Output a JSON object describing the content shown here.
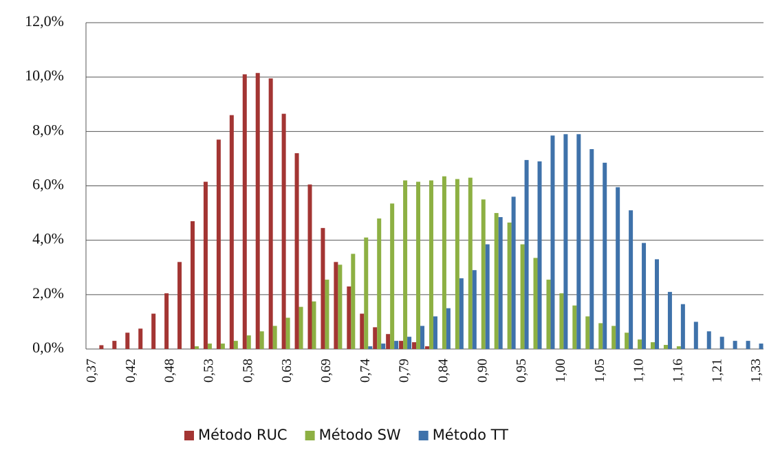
{
  "chart_data": {
    "type": "bar",
    "categories": [
      "0,37",
      null,
      null,
      "0,42",
      null,
      null,
      "0,48",
      null,
      null,
      "0,53",
      null,
      null,
      "0,58",
      null,
      null,
      "0,63",
      null,
      null,
      "0,69",
      null,
      null,
      "0,74",
      null,
      null,
      "0,79",
      null,
      null,
      "0,84",
      null,
      null,
      "0,90",
      null,
      null,
      "0,95",
      null,
      null,
      "1,00",
      null,
      null,
      "1,05",
      null,
      null,
      "1,10",
      null,
      null,
      "1,16",
      null,
      null,
      "1,21",
      null,
      null,
      "1,33"
    ],
    "series": [
      {
        "name": "Método RUC",
        "color": "#a33533",
        "values": [
          0,
          0.14,
          0.3,
          0.6,
          0.75,
          1.3,
          2.05,
          3.2,
          4.7,
          6.15,
          7.7,
          8.6,
          10.1,
          10.15,
          9.95,
          8.65,
          7.2,
          6.05,
          4.45,
          3.2,
          2.3,
          1.3,
          0.8,
          0.55,
          0.3,
          0.25,
          0.1,
          0,
          0,
          0,
          0,
          0,
          0,
          0,
          0,
          0,
          0,
          0,
          0,
          0,
          0,
          0,
          0,
          0,
          0,
          0,
          0,
          0,
          0,
          0,
          0,
          0
        ]
      },
      {
        "name": "Método SW",
        "color": "#8db043",
        "values": [
          0,
          0,
          0,
          0,
          0,
          0,
          0,
          0,
          0.1,
          0.2,
          0.2,
          0.3,
          0.5,
          0.65,
          0.85,
          1.15,
          1.55,
          1.75,
          2.55,
          3.1,
          3.5,
          4.1,
          4.8,
          5.35,
          6.2,
          6.15,
          6.2,
          6.35,
          6.25,
          6.3,
          5.5,
          5.0,
          4.65,
          3.85,
          3.35,
          2.55,
          2.05,
          1.6,
          1.2,
          0.95,
          0.85,
          0.6,
          0.35,
          0.25,
          0.15,
          0.1,
          0,
          0,
          0,
          0,
          0,
          0
        ]
      },
      {
        "name": "Método TT",
        "color": "#3f72aa",
        "values": [
          0,
          0,
          0,
          0,
          0,
          0,
          0,
          0,
          0,
          0,
          0,
          0,
          0,
          0,
          0,
          0,
          0,
          0,
          0,
          0,
          0,
          0.1,
          0.2,
          0.3,
          0.45,
          0.85,
          1.2,
          1.5,
          2.6,
          2.9,
          3.85,
          4.85,
          5.6,
          6.95,
          6.9,
          7.85,
          7.9,
          7.9,
          7.35,
          6.85,
          5.95,
          5.1,
          3.9,
          3.3,
          2.1,
          1.65,
          1.0,
          0.65,
          0.45,
          0.3,
          0.3,
          0.2
        ]
      }
    ],
    "ylim": [
      0,
      12
    ],
    "yticks": [
      {
        "value": 0,
        "label": "0,0%"
      },
      {
        "value": 2,
        "label": "2,0%"
      },
      {
        "value": 4,
        "label": "4,0%"
      },
      {
        "value": 6,
        "label": "6,0%"
      },
      {
        "value": 8,
        "label": "8,0%"
      },
      {
        "value": 10,
        "label": "10,0%"
      },
      {
        "value": 12,
        "label": "12,0%"
      }
    ],
    "grid": true,
    "legend": "bottom"
  }
}
